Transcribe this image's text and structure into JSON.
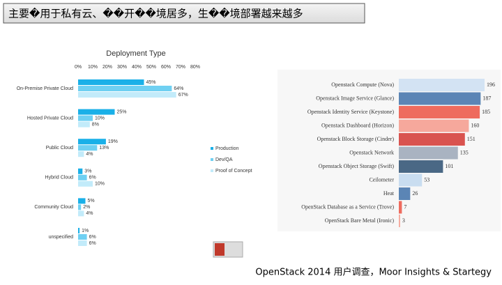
{
  "title": "主要�用于私有云、��开��境居多，生��境部署越来越多",
  "source": "OpenStack 2014 用户调查，Moor Insights & Startegy",
  "chart_data": [
    {
      "type": "bar",
      "orientation": "horizontal",
      "title": "Deployment Type",
      "categories": [
        "On-Premise Private Cloud",
        "Hosted Private Cloud",
        "Public Cloud",
        "Hybrid Cloud",
        "Community Cloud",
        "unspecified"
      ],
      "series": [
        {
          "name": "Production",
          "color": "#1ab0e8",
          "values": [
            45,
            25,
            19,
            3,
            5,
            1
          ],
          "value_labels": [
            "45%",
            "25%",
            "19%",
            "3%",
            "5%",
            "1%"
          ]
        },
        {
          "name": "Dev/QA",
          "color": "#6fd0f2",
          "values": [
            64,
            10,
            13,
            6,
            2,
            6
          ],
          "value_labels": [
            "64%",
            "10%",
            "13%",
            "6%",
            "2%",
            "6%"
          ]
        },
        {
          "name": "Proof of Concept",
          "color": "#c2ebfa",
          "values": [
            67,
            8,
            4,
            10,
            4,
            6
          ],
          "value_labels": [
            "67%",
            "8%",
            "4%",
            "10%",
            "4%",
            "6%"
          ]
        }
      ],
      "xlim": [
        0,
        80
      ],
      "xticks": [
        {
          "value": 0,
          "label": "0%"
        },
        {
          "value": 10,
          "label": "10%"
        },
        {
          "value": 20,
          "label": "20%"
        },
        {
          "value": 30,
          "label": "30%"
        },
        {
          "value": 40,
          "label": "40%"
        },
        {
          "value": 50,
          "label": "50%"
        },
        {
          "value": 60,
          "label": "60%"
        },
        {
          "value": 70,
          "label": "70%"
        },
        {
          "value": 80,
          "label": "80%"
        }
      ],
      "legend": "right"
    },
    {
      "type": "bar",
      "orientation": "horizontal",
      "categories": [
        "Openstack Compute (Nova)",
        "Openstack Image Service (Glance)",
        "Openstack Identity Service (Keystone)",
        "Openstack Dashboard (Horizon)",
        "Openstack Block Storage (Cinder)",
        "Openstack Network",
        "Openstack Object Storage (Swift)",
        "Ceilometer",
        "Heat",
        "OpenStack Database as a Service (Trove)",
        "OpenStack Bare Metal (Ironic)"
      ],
      "values": [
        196,
        187,
        185,
        160,
        151,
        135,
        101,
        53,
        26,
        7,
        3
      ],
      "colors": [
        "#d3e3f3",
        "#5b85b5",
        "#ee6b5e",
        "#f6a89c",
        "#d9534f",
        "#a9b3c1",
        "#4a6885",
        "#c9ddf0",
        "#5b85b5",
        "#ee6b5e",
        "#f6a89c"
      ]
    }
  ]
}
